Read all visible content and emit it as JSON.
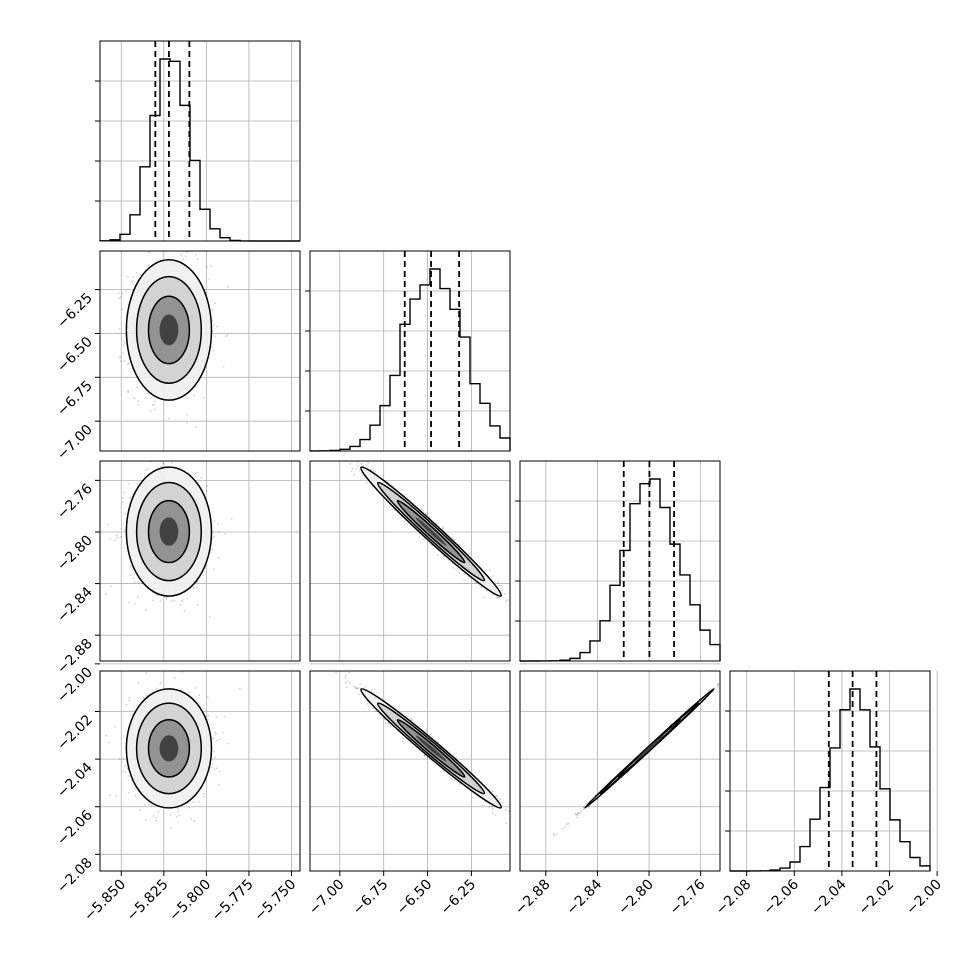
{
  "chart_data": {
    "type": "corner",
    "grid": true,
    "parameters": [
      {
        "range": [
          -5.8625,
          -5.745
        ],
        "ticks": [
          -5.85,
          -5.825,
          -5.8,
          -5.775,
          -5.75
        ],
        "tick_labels": [
          "−5.850",
          "−5.825",
          "−5.800",
          "−5.775",
          "−5.750"
        ],
        "median": -5.822,
        "q16": -5.83,
        "q84": -5.81,
        "sigma": 0.01
      },
      {
        "range": [
          -7.17,
          -6.03
        ],
        "ticks": [
          -7.0,
          -6.75,
          -6.5,
          -6.25
        ],
        "tick_labels": [
          "−7.00",
          "−6.75",
          "−6.50",
          "−6.25"
        ],
        "median": -6.48,
        "q16": -6.63,
        "q84": -6.32,
        "sigma": 0.16
      },
      {
        "range": [
          -2.9,
          -2.745
        ],
        "ticks": [
          -2.88,
          -2.84,
          -2.8,
          -2.76
        ],
        "tick_labels": [
          "−2.88",
          "−2.84",
          "−2.80",
          "−2.76"
        ],
        "median": -2.7997,
        "q16": -2.8196,
        "q84": -2.7806,
        "sigma": 0.02
      },
      {
        "range": [
          -2.087,
          -2.003
        ],
        "ticks": [
          -2.08,
          -2.06,
          -2.04,
          -2.02,
          -2.0
        ],
        "tick_labels": [
          "−2.08",
          "−2.06",
          "−2.04",
          "−2.02",
          "−2.00"
        ],
        "median": -2.0355,
        "q16": -2.0455,
        "q84": -2.0255,
        "sigma": 0.01
      }
    ],
    "pairs": [
      {
        "x": 0,
        "y": 1,
        "correlation": 0.0
      },
      {
        "x": 0,
        "y": 2,
        "correlation": 0.0
      },
      {
        "x": 0,
        "y": 3,
        "correlation": 0.0
      },
      {
        "x": 1,
        "y": 2,
        "correlation": -0.985
      },
      {
        "x": 1,
        "y": 3,
        "correlation": -0.985
      },
      {
        "x": 2,
        "y": 3,
        "correlation": 0.999
      }
    ]
  }
}
